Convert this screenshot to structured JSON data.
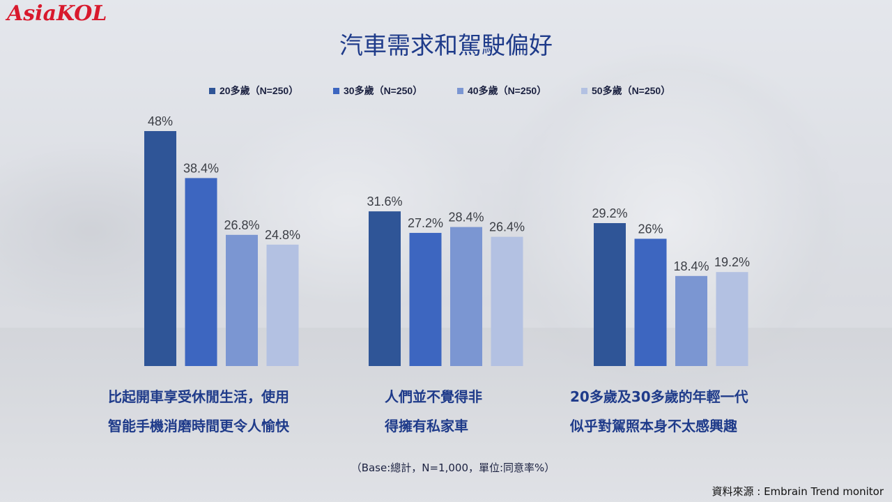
{
  "logo_text": "AsiaKOL",
  "title": "汽車需求和駕駛偏好",
  "legend": [
    {
      "label": "20多歲（N=250）",
      "color": "#2f5597"
    },
    {
      "label": "30多歲（N=250）",
      "color": "#3d66c0"
    },
    {
      "label": "40多歲（N=250）",
      "color": "#7b96d2"
    },
    {
      "label": "50多歲（N=250）",
      "color": "#b3c1e2"
    }
  ],
  "chart_data": {
    "type": "bar",
    "categories": [
      "比起開車享受休閒生活，使用智能手機消磨時間更令人愉快",
      "人們並不覺得非得擁有私家車",
      "20多歲及30多歲的年輕一代似乎對駕照本身不太感興趣"
    ],
    "series": [
      {
        "name": "20多歲（N=250）",
        "values": [
          48,
          31.6,
          29.2
        ],
        "labels": [
          "48%",
          "31.6%",
          "29.2%"
        ]
      },
      {
        "name": "30多歲（N=250）",
        "values": [
          38.4,
          27.2,
          26
        ],
        "labels": [
          "38.4%",
          "27.2%",
          "26%"
        ]
      },
      {
        "name": "40多歲（N=250）",
        "values": [
          26.8,
          28.4,
          18.4
        ],
        "labels": [
          "26.8%",
          "28.4%",
          "18.4%"
        ]
      },
      {
        "name": "50多歲（N=250）",
        "values": [
          24.8,
          26.4,
          19.2
        ],
        "labels": [
          "24.8%",
          "26.4%",
          "19.2%"
        ]
      }
    ],
    "ylim": [
      0,
      48
    ],
    "grid": false,
    "legend_position": "top"
  },
  "captions": [
    [
      "比起開車享受休閒生活，使用",
      "智能手機消磨時間更令人愉快"
    ],
    [
      "人們並不覺得非",
      "得擁有私家車"
    ],
    [
      "20多歲及30多歲的年輕一代",
      "似乎對駕照本身不太感興趣"
    ]
  ],
  "base_note": "（Base:總計，N=1,000，單位:同意率%）",
  "source": "資料來源 : Embrain  Trend monitor"
}
